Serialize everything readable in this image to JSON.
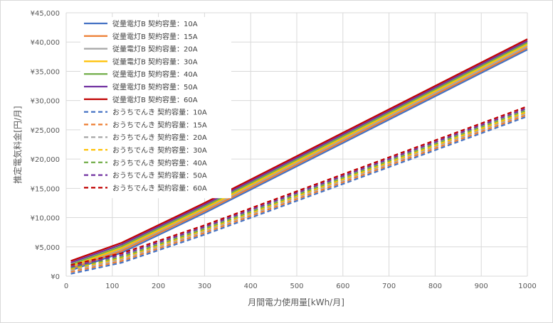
{
  "chart_data": {
    "type": "line",
    "xlabel": "月間電力使用量[kWh/月]",
    "ylabel": "推定電気料金[円/月]",
    "xlim": [
      0,
      1000
    ],
    "ylim": [
      0,
      45000
    ],
    "x_ticks": [
      "0",
      "100",
      "200",
      "300",
      "400",
      "500",
      "600",
      "700",
      "800",
      "900",
      "1000"
    ],
    "y_ticks": [
      "¥0",
      "¥5,000",
      "¥10,000",
      "¥15,000",
      "¥20,000",
      "¥25,000",
      "¥30,000",
      "¥35,000",
      "¥40,000",
      "¥45,000"
    ],
    "grid": true,
    "legend_position": "top-left",
    "x": [
      10,
      120,
      300,
      1000
    ],
    "series": [
      {
        "name": "従量電灯B 契約容量：10A",
        "color": "#4472c4",
        "dash": false,
        "values": [
          1000,
          4000,
          10800,
          38700
        ]
      },
      {
        "name": "従量電灯B 契約容量：15A",
        "color": "#ed7d31",
        "dash": false,
        "values": [
          1300,
          4300,
          11100,
          39000
        ]
      },
      {
        "name": "従量電灯B 契約容量：20A",
        "color": "#a5a5a5",
        "dash": false,
        "values": [
          1600,
          4600,
          11400,
          39300
        ]
      },
      {
        "name": "従量電灯B 契約容量：30A",
        "color": "#ffc000",
        "dash": false,
        "values": [
          1700,
          4800,
          11600,
          39600
        ]
      },
      {
        "name": "従量電灯B 契約容量：40A",
        "color": "#70ad47",
        "dash": false,
        "values": [
          2000,
          5100,
          11900,
          39900
        ]
      },
      {
        "name": "従量電灯B 契約容量：50A",
        "color": "#7030a0",
        "dash": false,
        "values": [
          2300,
          5400,
          12200,
          40200
        ]
      },
      {
        "name": "従量電灯B 契約容量：60A",
        "color": "#c00000",
        "dash": false,
        "values": [
          2600,
          5700,
          12500,
          40500
        ]
      },
      {
        "name": "おうちでんき 契約容量：10A",
        "color": "#4472c4",
        "dash": true,
        "values": [
          400,
          2300,
          7100,
          27300
        ]
      },
      {
        "name": "おうちでんき 契約容量：15A",
        "color": "#ed7d31",
        "dash": true,
        "values": [
          700,
          2600,
          7400,
          27600
        ]
      },
      {
        "name": "おうちでんき 契約容量：20A",
        "color": "#a5a5a5",
        "dash": true,
        "values": [
          1000,
          2900,
          7700,
          27900
        ]
      },
      {
        "name": "おうちでんき 契約容量：30A",
        "color": "#ffc000",
        "dash": true,
        "values": [
          1200,
          3100,
          7900,
          28100
        ]
      },
      {
        "name": "おうちでんき 契約容量：40A",
        "color": "#70ad47",
        "dash": true,
        "values": [
          1400,
          3300,
          8100,
          28400
        ]
      },
      {
        "name": "おうちでんき 契約容量：50A",
        "color": "#7030a0",
        "dash": true,
        "values": [
          1600,
          3600,
          8400,
          28700
        ]
      },
      {
        "name": "おうちでんき 契約容量：60A",
        "color": "#c00000",
        "dash": true,
        "values": [
          1900,
          3900,
          8700,
          29000
        ]
      }
    ]
  }
}
